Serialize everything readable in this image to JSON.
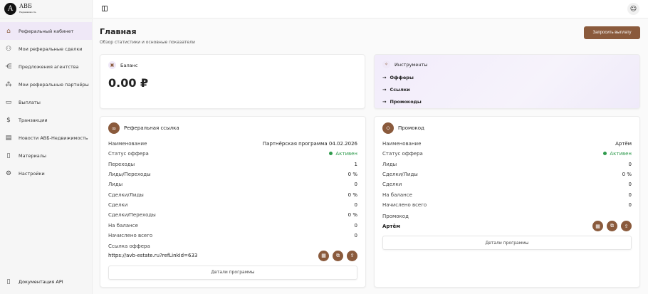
{
  "brand": {
    "logo_letter": "А",
    "name": "АВБ",
    "sub": "Недвижимость"
  },
  "sidebar": {
    "items": [
      {
        "label": "Реферальный кабинет",
        "icon": "home-icon"
      },
      {
        "label": "Мои реферальные сделки",
        "icon": "users-icon"
      },
      {
        "label": "Предложения агентства",
        "icon": "share-icon"
      },
      {
        "label": "Мои реферальные партнёры",
        "icon": "network-icon"
      },
      {
        "label": "Выплаты",
        "icon": "card-icon"
      },
      {
        "label": "Транзакции",
        "icon": "receipt-icon"
      },
      {
        "label": "Новости АВБ-Недвижимость",
        "icon": "news-icon"
      },
      {
        "label": "Материалы",
        "icon": "book-icon"
      },
      {
        "label": "Настройки",
        "icon": "gear-icon"
      }
    ],
    "api_label": "Документация API"
  },
  "page": {
    "title": "Главная",
    "subtitle": "Обзор статистики и основные показатели",
    "pay_button": "Запросить выплату"
  },
  "balance": {
    "label": "Баланс",
    "value": "0.00 ₽"
  },
  "tools": {
    "label": "Инструменты",
    "links": [
      "Офферы",
      "Ссылки",
      "Промокоды"
    ]
  },
  "referral": {
    "title": "Реферальная ссылка",
    "rows": [
      [
        "Наименование",
        "Партнёрская программа 04.02.2026"
      ],
      [
        "Статус оффера",
        "Активен"
      ],
      [
        "Переходы",
        "1"
      ],
      [
        "Лиды/Переходы",
        "0 %"
      ],
      [
        "Лиды",
        "0"
      ],
      [
        "Сделки/Лиды",
        "0 %"
      ],
      [
        "Сделки",
        "0"
      ],
      [
        "Сделки/Переходы",
        "0 %"
      ],
      [
        "На балансе",
        "0"
      ],
      [
        "Начислено всего",
        "0"
      ]
    ],
    "link_label": "Ссылка оффера",
    "link": "https://avb-estate.ru?refLinkId=633",
    "details": "Детали программы"
  },
  "promo": {
    "title": "Промокод",
    "rows": [
      [
        "Наименование",
        "Артём"
      ],
      [
        "Статус оффера",
        "Активен"
      ],
      [
        "Лиды",
        "0"
      ],
      [
        "Сделки/Лиды",
        "0 %"
      ],
      [
        "Сделки",
        "0"
      ],
      [
        "На балансе",
        "0"
      ],
      [
        "Начислено всего",
        "0"
      ]
    ],
    "code_label": "Промокод",
    "code": "Артём",
    "details": "Детали программы"
  },
  "colors": {
    "accent": "#8a5a3c",
    "active_bg": "#efe8f7",
    "status": "#2e9a4c"
  }
}
